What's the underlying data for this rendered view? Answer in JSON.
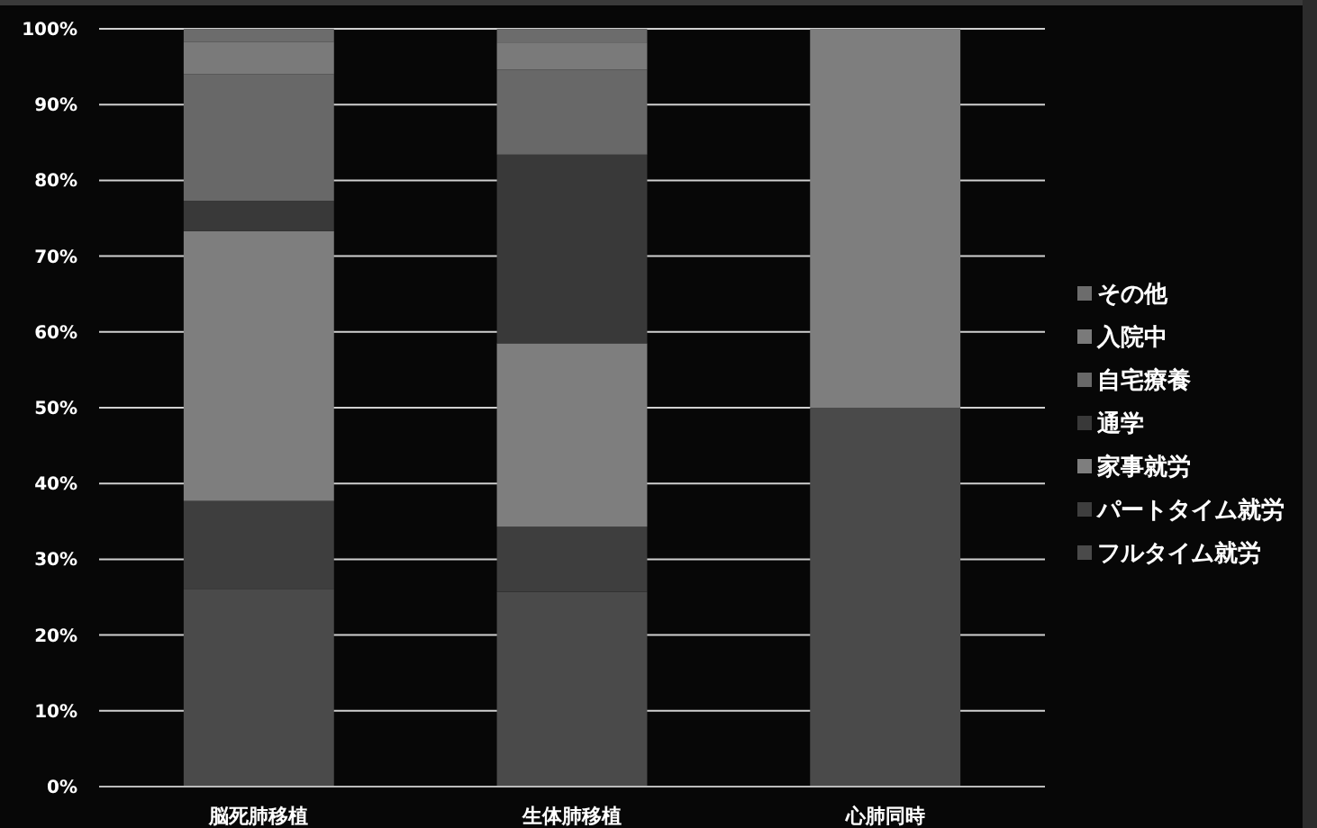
{
  "chart_data": {
    "type": "bar",
    "stacked": true,
    "categories": [
      "脳死肺移植",
      "生体肺移植",
      "心肺同時"
    ],
    "series": [
      {
        "name": "フルタイム就労",
        "color": "#4a4a4a",
        "values": [
          26.1,
          25.7,
          50
        ]
      },
      {
        "name": "パートタイム就労",
        "color": "#3e3e3e",
        "values": [
          11.6,
          8.6,
          0
        ]
      },
      {
        "name": "家事就労",
        "color": "#7e7e7e",
        "values": [
          35.6,
          24.2,
          50
        ]
      },
      {
        "name": "通学",
        "color": "#393939",
        "values": [
          4.0,
          24.9,
          0
        ]
      },
      {
        "name": "自宅療養",
        "color": "#686868",
        "values": [
          16.7,
          11.2,
          0
        ]
      },
      {
        "name": "入院中",
        "color": "#7a7a7a",
        "values": [
          4.3,
          3.6,
          0
        ]
      },
      {
        "name": "その他",
        "color": "#6c6c6c",
        "values": [
          1.7,
          1.8,
          0
        ]
      }
    ],
    "ylim": [
      0,
      100
    ],
    "yticks": [
      {
        "value": 0,
        "label": "0%"
      },
      {
        "value": 10,
        "label": "10%"
      },
      {
        "value": 20,
        "label": "20%"
      },
      {
        "value": 30,
        "label": "30%"
      },
      {
        "value": 40,
        "label": "40%"
      },
      {
        "value": 50,
        "label": "50%"
      },
      {
        "value": 60,
        "label": "60%"
      },
      {
        "value": 70,
        "label": "70%"
      },
      {
        "value": 80,
        "label": "80%"
      },
      {
        "value": 90,
        "label": "90%"
      },
      {
        "value": 100,
        "label": "100%"
      }
    ],
    "grid": "y",
    "legend": "right"
  }
}
